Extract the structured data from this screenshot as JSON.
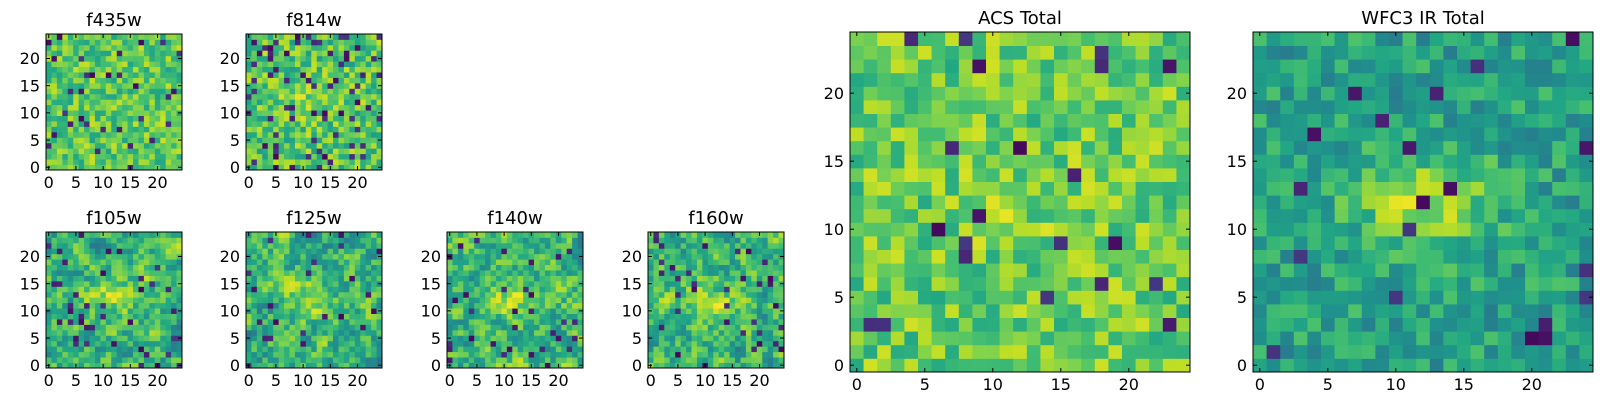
{
  "chart_data": [
    {
      "type": "heatmap",
      "title": "f435w",
      "xlabel": "",
      "ylabel": "",
      "x_ticks": [
        "0",
        "5",
        "10",
        "15",
        "20"
      ],
      "y_ticks": [
        "0",
        "5",
        "10",
        "15",
        "20"
      ],
      "xlim": [
        -0.5,
        24.5
      ],
      "ylim": [
        -0.5,
        24.5
      ],
      "grid": false,
      "colormap": "viridis",
      "grid_size": [
        25,
        25
      ],
      "seed": 11,
      "smooth": 0,
      "dark_frac": 0.05,
      "center_boost": 0.0,
      "level_range": [
        0.58,
        0.92
      ]
    },
    {
      "type": "heatmap",
      "title": "f814w",
      "xlabel": "",
      "ylabel": "",
      "x_ticks": [
        "0",
        "5",
        "10",
        "15",
        "20"
      ],
      "y_ticks": [
        "0",
        "5",
        "10",
        "15",
        "20"
      ],
      "xlim": [
        -0.5,
        24.5
      ],
      "ylim": [
        -0.5,
        24.5
      ],
      "grid": false,
      "colormap": "viridis",
      "grid_size": [
        25,
        25
      ],
      "seed": 23,
      "smooth": 0,
      "dark_frac": 0.09,
      "center_boost": 0.08,
      "level_range": [
        0.55,
        0.92
      ]
    },
    {
      "type": "heatmap",
      "title": "f105w",
      "xlabel": "",
      "ylabel": "",
      "x_ticks": [
        "0",
        "5",
        "10",
        "15",
        "20"
      ],
      "y_ticks": [
        "0",
        "5",
        "10",
        "15",
        "20"
      ],
      "xlim": [
        -0.5,
        24.5
      ],
      "ylim": [
        -0.5,
        24.5
      ],
      "grid": false,
      "colormap": "viridis",
      "grid_size": [
        25,
        25
      ],
      "seed": 37,
      "smooth": 1,
      "dark_frac": 0.06,
      "center_boost": 0.18,
      "level_range": [
        0.4,
        0.93
      ]
    },
    {
      "type": "heatmap",
      "title": "f125w",
      "xlabel": "",
      "ylabel": "",
      "x_ticks": [
        "0",
        "5",
        "10",
        "15",
        "20"
      ],
      "y_ticks": [
        "0",
        "5",
        "10",
        "15",
        "20"
      ],
      "xlim": [
        -0.5,
        24.5
      ],
      "ylim": [
        -0.5,
        24.5
      ],
      "grid": false,
      "colormap": "viridis",
      "grid_size": [
        25,
        25
      ],
      "seed": 41,
      "smooth": 1,
      "dark_frac": 0.05,
      "center_boost": 0.2,
      "level_range": [
        0.38,
        0.92
      ]
    },
    {
      "type": "heatmap",
      "title": "f140w",
      "xlabel": "",
      "ylabel": "",
      "x_ticks": [
        "0",
        "5",
        "10",
        "15",
        "20"
      ],
      "y_ticks": [
        "0",
        "5",
        "10",
        "15",
        "20"
      ],
      "xlim": [
        -0.5,
        24.5
      ],
      "ylim": [
        -0.5,
        24.5
      ],
      "grid": false,
      "colormap": "viridis",
      "grid_size": [
        25,
        25
      ],
      "seed": 53,
      "smooth": 1,
      "dark_frac": 0.04,
      "center_boost": 0.15,
      "level_range": [
        0.4,
        0.92
      ]
    },
    {
      "type": "heatmap",
      "title": "f160w",
      "xlabel": "",
      "ylabel": "",
      "x_ticks": [
        "0",
        "5",
        "10",
        "15",
        "20"
      ],
      "y_ticks": [
        "0",
        "5",
        "10",
        "15",
        "20"
      ],
      "xlim": [
        -0.5,
        24.5
      ],
      "ylim": [
        -0.5,
        24.5
      ],
      "grid": false,
      "colormap": "viridis",
      "grid_size": [
        25,
        25
      ],
      "seed": 67,
      "smooth": 1,
      "dark_frac": 0.05,
      "center_boost": 0.14,
      "level_range": [
        0.4,
        0.92
      ]
    },
    {
      "type": "heatmap",
      "title": "ACS Total",
      "xlabel": "",
      "ylabel": "",
      "x_ticks": [
        "0",
        "5",
        "10",
        "15",
        "20"
      ],
      "y_ticks": [
        "0",
        "5",
        "10",
        "15",
        "20"
      ],
      "xlim": [
        -0.5,
        24.5
      ],
      "ylim": [
        -0.5,
        24.5
      ],
      "grid": false,
      "colormap": "viridis",
      "grid_size": [
        25,
        25
      ],
      "seed": 79,
      "smooth": 0,
      "dark_frac": 0.03,
      "center_boost": 0.05,
      "level_range": [
        0.6,
        0.93
      ]
    },
    {
      "type": "heatmap",
      "title": "WFC3 IR Total",
      "xlabel": "",
      "ylabel": "",
      "x_ticks": [
        "0",
        "5",
        "10",
        "15",
        "20"
      ],
      "y_ticks": [
        "0",
        "5",
        "10",
        "15",
        "20"
      ],
      "xlim": [
        -0.5,
        24.5
      ],
      "ylim": [
        -0.5,
        24.5
      ],
      "grid": false,
      "colormap": "viridis",
      "grid_size": [
        25,
        25
      ],
      "seed": 97,
      "smooth": 0,
      "dark_frac": 0.03,
      "center_boost": 0.3,
      "level_range": [
        0.42,
        0.72
      ]
    }
  ]
}
